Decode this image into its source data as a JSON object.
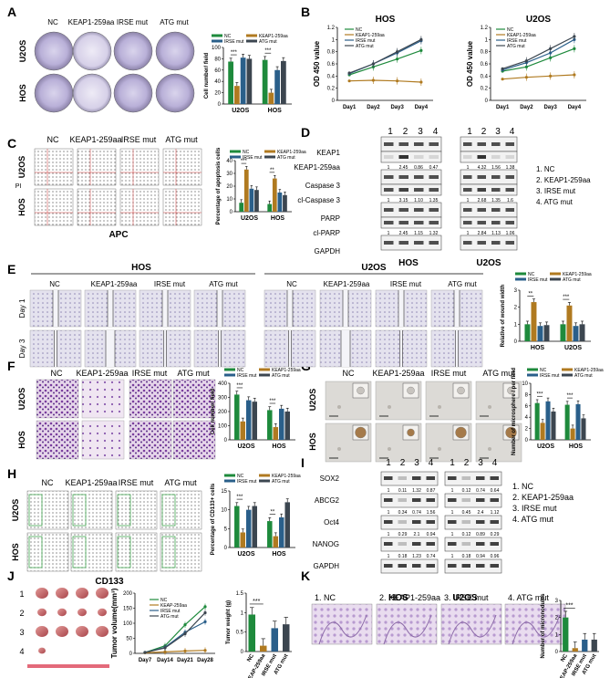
{
  "panel_labels": [
    "A",
    "B",
    "C",
    "D",
    "E",
    "F",
    "G",
    "H",
    "I",
    "J",
    "K"
  ],
  "groups": [
    "NC",
    "KEAP1-259aa",
    "IRSE mut",
    "ATG mut"
  ],
  "legend_short": [
    "NC",
    "KEAP-259aa",
    "IRSE mut",
    "ATG mut"
  ],
  "cells": [
    "U2OS",
    "HOS"
  ],
  "colors": {
    "NC": "#1e8a3c",
    "KEAP": "#b07a20",
    "IRSE": "#2a5f8a",
    "ATG": "#3c4650"
  },
  "sig": {
    "three": "***",
    "two": "**"
  },
  "A": {
    "ylabel": "Cell number/ field",
    "xcats": [
      "U2OS",
      "HOS"
    ]
  },
  "B": {
    "titles": [
      "HOS",
      "U2OS"
    ],
    "ylabel": "OD 450 value",
    "days": [
      "Day1",
      "Day2",
      "Day3",
      "Day4"
    ]
  },
  "C": {
    "xlabel": "APC",
    "ylabel_side": "PI",
    "ylabel": "Percentage of apoptosis cells",
    "xcats": [
      "U2OS",
      "HOS"
    ]
  },
  "D": {
    "lanes": [
      "1",
      "2",
      "3",
      "4"
    ],
    "rows": [
      "KEAP1",
      "KEAP1-259aa",
      "Caspase 3",
      "cl-Caspase 3",
      "PARP",
      "cl-PARP",
      "GAPDH"
    ],
    "hos_vals": [
      [
        "1",
        "2.45",
        "0.86",
        "0.47"
      ],
      [
        "1",
        "3.15",
        "1.10",
        "1.35"
      ],
      [
        "1",
        "2.45",
        "1.15",
        "1.32"
      ]
    ],
    "u2os_vals": [
      [
        "1",
        "4.32",
        "1.56",
        "1.38"
      ],
      [
        "1",
        "2.68",
        "1.35",
        "1.6"
      ],
      [
        "1",
        "2.84",
        "1.13",
        "1.06"
      ]
    ],
    "cells": [
      "HOS",
      "U2OS"
    ],
    "legend": [
      "1. NC",
      "2. KEAP1-259aa",
      "3. IRSE mut",
      "4. ATG mut"
    ]
  },
  "E": {
    "titles": [
      "HOS",
      "U2OS"
    ],
    "rows": [
      "Day 1",
      "Day 3"
    ],
    "ylabel": "Relative of wound width",
    "xcats": [
      "HOS",
      "U2OS"
    ]
  },
  "F": {
    "ylabel": "Cell number/ field",
    "xcats": [
      "U2OS",
      "HOS"
    ]
  },
  "G": {
    "ylabel": "Number of microsphere / per field",
    "xcats": [
      "U2OS",
      "HOS"
    ]
  },
  "H": {
    "xlabel": "CD133",
    "ylabel": "Percentage of CD133+ cells",
    "xcats": [
      "U2OS",
      "HOS"
    ]
  },
  "I": {
    "lanes": [
      "1",
      "2",
      "3",
      "4"
    ],
    "rows": [
      "SOX2",
      "ABCG2",
      "Oct4",
      "NANOG",
      "GAPDH"
    ],
    "left_vals": [
      [
        "1",
        "0.11",
        "1.32",
        "0.87"
      ],
      [
        "1",
        "0.34",
        "0.74",
        "1.56"
      ],
      [
        "1",
        "0.29",
        "2.1",
        "0.94"
      ],
      [
        "1",
        "0.18",
        "1.23",
        "0.74"
      ]
    ],
    "right_vals": [
      [
        "1",
        "0.12",
        "0.74",
        "0.64"
      ],
      [
        "1",
        "0.45",
        "2.4",
        "1.12"
      ],
      [
        "1",
        "0.12",
        "0.89",
        "0.29"
      ],
      [
        "1",
        "0.18",
        "0.94",
        "0.96"
      ]
    ],
    "legend": [
      "1. NC",
      "2. KEAP1-259aa",
      "3. IRSE mut",
      "4. ATG mut"
    ]
  },
  "J": {
    "rows": [
      "1",
      "2",
      "3",
      "4"
    ],
    "line_ylabel": "Tumor volume(mm³)",
    "days": [
      "Day7",
      "Day14",
      "Day21",
      "Day28"
    ],
    "bar_ylabel": "Tumor weight (g)"
  },
  "K": {
    "captions": [
      "1. NC",
      "2. KEAP1-259aa",
      "3. IRSE mut",
      "4. ATG mut"
    ],
    "cells": [
      "HOS",
      "U2OS"
    ],
    "ylabel": "Number of micronodules"
  },
  "chart_data": [
    {
      "panel": "A",
      "type": "bar",
      "categories": [
        "U2OS",
        "HOS"
      ],
      "series": [
        {
          "name": "NC",
          "values": [
            75,
            78
          ]
        },
        {
          "name": "KEAP1-259aa",
          "values": [
            32,
            20
          ]
        },
        {
          "name": "IRSE mut",
          "values": [
            82,
            60
          ]
        },
        {
          "name": "ATG mut",
          "values": [
            80,
            76
          ]
        }
      ],
      "ylim": [
        0,
        100
      ],
      "ticks": [
        0,
        20,
        40,
        60,
        80,
        100
      ]
    },
    {
      "panel": "B-HOS",
      "type": "line",
      "x": [
        "Day1",
        "Day2",
        "Day3",
        "Day4"
      ],
      "series": [
        {
          "name": "NC",
          "values": [
            0.42,
            0.55,
            0.68,
            0.82
          ]
        },
        {
          "name": "KEAP1-259aa",
          "values": [
            0.32,
            0.33,
            0.32,
            0.3
          ]
        },
        {
          "name": "IRSE mut",
          "values": [
            0.44,
            0.6,
            0.78,
            0.98
          ]
        },
        {
          "name": "ATG mut",
          "values": [
            0.45,
            0.6,
            0.8,
            1.0
          ]
        }
      ],
      "ylim": [
        0,
        1.2
      ],
      "ticks": [
        0,
        0.2,
        0.4,
        0.6,
        0.8,
        1.0,
        1.2
      ]
    },
    {
      "panel": "B-U2OS",
      "type": "line",
      "x": [
        "Day1",
        "Day2",
        "Day3",
        "Day4"
      ],
      "series": [
        {
          "name": "NC",
          "values": [
            0.48,
            0.55,
            0.7,
            0.85
          ]
        },
        {
          "name": "KEAP1-259aa",
          "values": [
            0.35,
            0.38,
            0.4,
            0.42
          ]
        },
        {
          "name": "IRSE mut",
          "values": [
            0.5,
            0.62,
            0.78,
            1.0
          ]
        },
        {
          "name": "ATG mut",
          "values": [
            0.52,
            0.65,
            0.85,
            1.05
          ]
        }
      ],
      "ylim": [
        0,
        1.2
      ],
      "ticks": [
        0,
        0.2,
        0.4,
        0.6,
        0.8,
        1.0,
        1.2
      ]
    },
    {
      "panel": "C",
      "type": "bar",
      "categories": [
        "U2OS",
        "HOS"
      ],
      "series": [
        {
          "name": "NC",
          "values": [
            7,
            6
          ]
        },
        {
          "name": "KEAP1-259aa",
          "values": [
            33,
            26
          ]
        },
        {
          "name": "IRSE mut",
          "values": [
            18,
            15
          ]
        },
        {
          "name": "ATG mut",
          "values": [
            17,
            13
          ]
        }
      ],
      "ylim": [
        0,
        40
      ],
      "ticks": [
        0,
        10,
        20,
        30,
        40
      ]
    },
    {
      "panel": "E",
      "type": "bar",
      "categories": [
        "HOS",
        "U2OS"
      ],
      "series": [
        {
          "name": "NC",
          "values": [
            1.0,
            1.0
          ]
        },
        {
          "name": "KEAP1-259aa",
          "values": [
            2.3,
            2.1
          ]
        },
        {
          "name": "IRSE mut",
          "values": [
            0.9,
            0.9
          ]
        },
        {
          "name": "ATG mut",
          "values": [
            0.95,
            1.0
          ]
        }
      ],
      "ylim": [
        0,
        3
      ],
      "ticks": [
        0,
        1,
        2,
        3
      ]
    },
    {
      "panel": "F",
      "type": "bar",
      "categories": [
        "U2OS",
        "HOS"
      ],
      "series": [
        {
          "name": "NC",
          "values": [
            320,
            210
          ]
        },
        {
          "name": "KEAP1-259aa",
          "values": [
            130,
            90
          ]
        },
        {
          "name": "IRSE mut",
          "values": [
            280,
            220
          ]
        },
        {
          "name": "ATG mut",
          "values": [
            270,
            200
          ]
        }
      ],
      "ylim": [
        0,
        400
      ],
      "ticks": [
        0,
        100,
        200,
        300,
        400
      ]
    },
    {
      "panel": "G",
      "type": "bar",
      "categories": [
        "U2OS",
        "HOS"
      ],
      "series": [
        {
          "name": "NC",
          "values": [
            6.5,
            6.2
          ]
        },
        {
          "name": "KEAP1-259aa",
          "values": [
            3.0,
            2.0
          ]
        },
        {
          "name": "IRSE mut",
          "values": [
            6.8,
            6.3
          ]
        },
        {
          "name": "ATG mut",
          "values": [
            5.0,
            3.8
          ]
        }
      ],
      "ylim": [
        0,
        10
      ],
      "ticks": [
        0,
        2,
        4,
        6,
        8,
        10
      ]
    },
    {
      "panel": "H",
      "type": "bar",
      "categories": [
        "U2OS",
        "HOS"
      ],
      "series": [
        {
          "name": "NC",
          "values": [
            11,
            7
          ]
        },
        {
          "name": "KEAP1-259aa",
          "values": [
            4,
            3
          ]
        },
        {
          "name": "IRSE mut",
          "values": [
            10,
            8
          ]
        },
        {
          "name": "ATG mut",
          "values": [
            11,
            12
          ]
        }
      ],
      "ylim": [
        0,
        15
      ],
      "ticks": [
        0,
        5,
        10,
        15
      ]
    },
    {
      "panel": "J-volume",
      "type": "line",
      "x": [
        "Day7",
        "Day14",
        "Day21",
        "Day28"
      ],
      "series": [
        {
          "name": "NC",
          "values": [
            3,
            25,
            95,
            155
          ]
        },
        {
          "name": "KEAP-259aa",
          "values": [
            2,
            5,
            8,
            10
          ]
        },
        {
          "name": "IRSE mut",
          "values": [
            3,
            20,
            70,
            105
          ]
        },
        {
          "name": "ATG mut",
          "values": [
            3,
            18,
            65,
            135
          ]
        }
      ],
      "ylim": [
        0,
        200
      ],
      "ticks": [
        0,
        50,
        100,
        150,
        200
      ]
    },
    {
      "panel": "J-weight",
      "type": "bar",
      "categories": [
        "NC",
        "KEAP-259aa",
        "IRSE mut",
        "ATG mut"
      ],
      "values": [
        0.95,
        0.15,
        0.6,
        0.7
      ],
      "ylim": [
        0,
        1.5
      ],
      "ticks": [
        0,
        0.5,
        1.0,
        1.5
      ]
    },
    {
      "panel": "K",
      "type": "bar",
      "categories": [
        "NC",
        "KEAP-259aa",
        "IRSE mut",
        "ATG mut"
      ],
      "values": [
        2.0,
        0.2,
        0.7,
        0.7
      ],
      "ylim": [
        0,
        3
      ],
      "ticks": [
        0,
        1,
        2,
        3
      ]
    }
  ]
}
